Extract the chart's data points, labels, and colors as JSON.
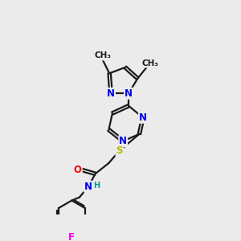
{
  "bg_color": "#ebebeb",
  "bond_color": "#1a1a1a",
  "bond_width": 1.6,
  "atom_colors": {
    "N": "#0000ee",
    "O": "#ee0000",
    "S": "#bbbb00",
    "F": "#ee00ee",
    "H": "#009999",
    "C": "#1a1a1a"
  },
  "font_size": 8.5,
  "fig_size": [
    3.0,
    3.0
  ],
  "dpi": 100
}
